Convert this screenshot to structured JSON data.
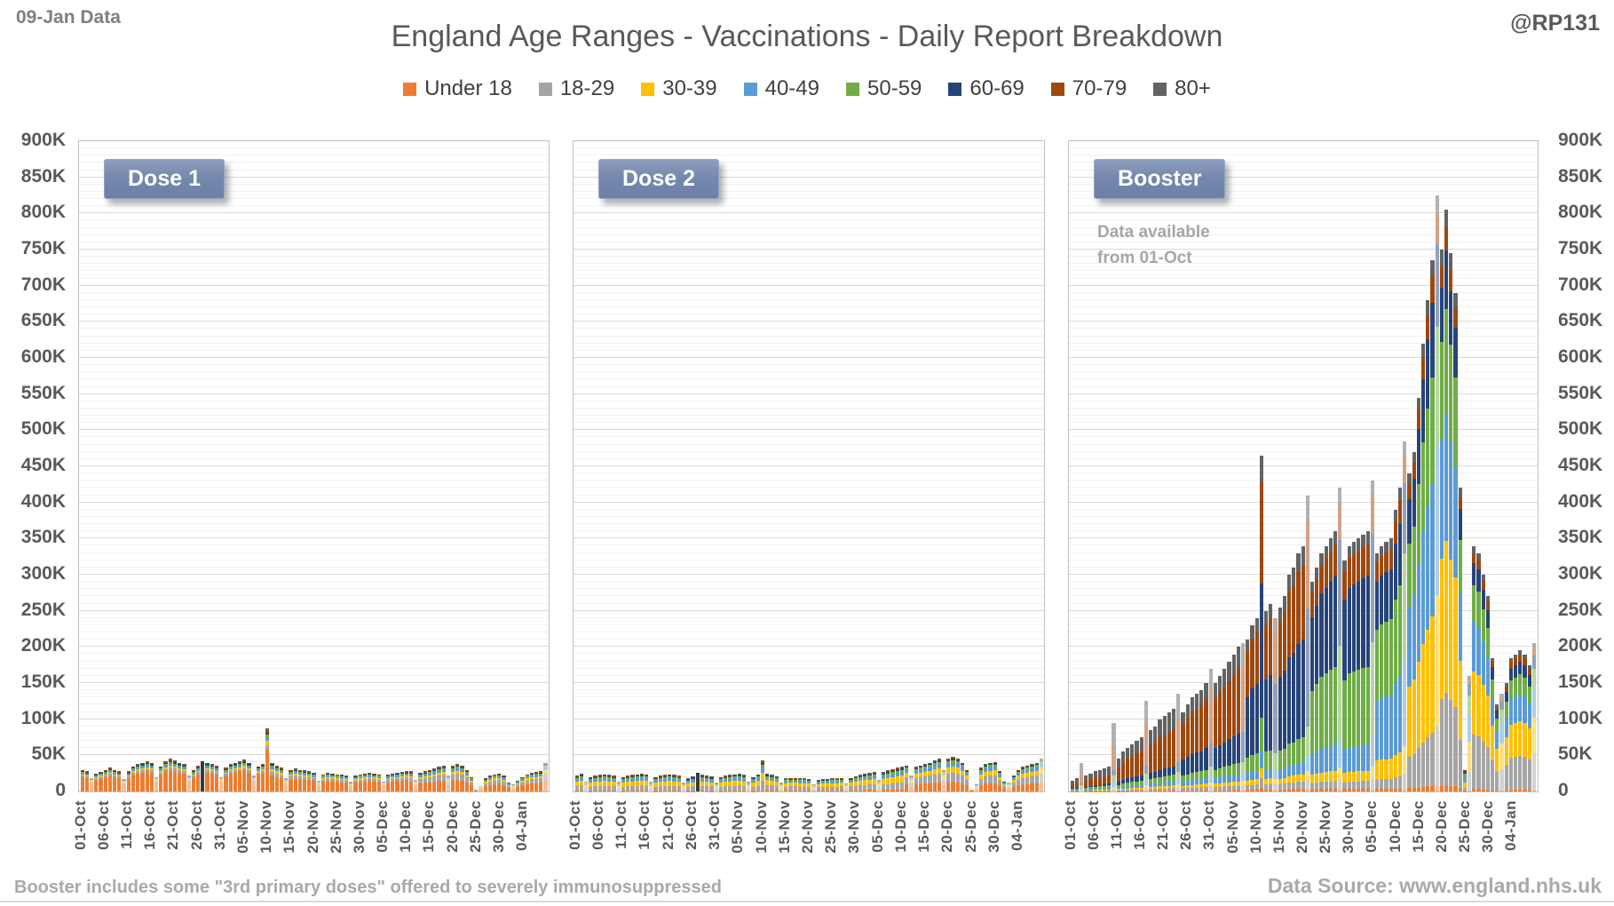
{
  "header": {
    "data_label": "09-Jan Data",
    "title": "England Age Ranges - Vaccinations - Daily Report Breakdown",
    "handle": "@RP131"
  },
  "footer": {
    "left_note": "Booster includes some \"3rd primary doses\" offered to severely immunosuppressed",
    "right_source": "Data Source: www.england.nhs.uk"
  },
  "chart_data": {
    "type": "bar",
    "subtype": "stacked-daily",
    "units": "doses per day (thousands)",
    "age_groups": [
      {
        "label": "Under 18",
        "color": "#ED7D31"
      },
      {
        "label": "18-29",
        "color": "#A5A5A5"
      },
      {
        "label": "30-39",
        "color": "#FFC000"
      },
      {
        "label": "40-49",
        "color": "#5B9BD5"
      },
      {
        "label": "50-59",
        "color": "#70AD47"
      },
      {
        "label": "60-69",
        "color": "#264478"
      },
      {
        "label": "70-79",
        "color": "#9E480E"
      },
      {
        "label": "80+",
        "color": "#636363"
      }
    ],
    "solid_dark_color": "#3a3a3a",
    "y_axis": {
      "max": 900,
      "major_step": 50,
      "minor_step": 10,
      "labels": [
        "0",
        "50K",
        "100K",
        "150K",
        "200K",
        "250K",
        "300K",
        "350K",
        "400K",
        "450K",
        "500K",
        "550K",
        "600K",
        "650K",
        "700K",
        "750K",
        "800K",
        "850K",
        "900K"
      ]
    },
    "dates": [
      "01-Oct",
      "02-Oct",
      "03-Oct",
      "04-Oct",
      "05-Oct",
      "06-Oct",
      "07-Oct",
      "08-Oct",
      "09-Oct",
      "10-Oct",
      "11-Oct",
      "12-Oct",
      "13-Oct",
      "14-Oct",
      "15-Oct",
      "16-Oct",
      "17-Oct",
      "18-Oct",
      "19-Oct",
      "20-Oct",
      "21-Oct",
      "22-Oct",
      "23-Oct",
      "24-Oct",
      "25-Oct",
      "26-Oct",
      "27-Oct",
      "28-Oct",
      "29-Oct",
      "30-Oct",
      "31-Oct",
      "01-Nov",
      "02-Nov",
      "03-Nov",
      "04-Nov",
      "05-Nov",
      "06-Nov",
      "07-Nov",
      "08-Nov",
      "09-Nov",
      "10-Nov",
      "11-Nov",
      "12-Nov",
      "13-Nov",
      "14-Nov",
      "15-Nov",
      "16-Nov",
      "17-Nov",
      "18-Nov",
      "19-Nov",
      "20-Nov",
      "21-Nov",
      "22-Nov",
      "23-Nov",
      "24-Nov",
      "25-Nov",
      "26-Nov",
      "27-Nov",
      "28-Nov",
      "29-Nov",
      "30-Nov",
      "01-Dec",
      "02-Dec",
      "03-Dec",
      "04-Dec",
      "05-Dec",
      "06-Dec",
      "07-Dec",
      "08-Dec",
      "09-Dec",
      "10-Dec",
      "11-Dec",
      "12-Dec",
      "13-Dec",
      "14-Dec",
      "15-Dec",
      "16-Dec",
      "17-Dec",
      "18-Dec",
      "19-Dec",
      "20-Dec",
      "21-Dec",
      "22-Dec",
      "23-Dec",
      "24-Dec",
      "25-Dec",
      "26-Dec",
      "27-Dec",
      "28-Dec",
      "29-Dec",
      "30-Dec",
      "31-Dec",
      "01-Jan",
      "02-Jan",
      "03-Jan",
      "04-Jan",
      "05-Jan",
      "06-Jan",
      "07-Jan",
      "08-Jan",
      "09-Jan"
    ],
    "x_tick_indices": [
      0,
      5,
      10,
      15,
      20,
      25,
      30,
      35,
      40,
      45,
      50,
      55,
      60,
      65,
      70,
      75,
      80,
      85,
      90,
      95
    ],
    "sunday_pale_days": [
      2,
      9,
      16,
      23,
      30,
      37,
      44,
      51,
      58,
      65,
      72,
      79,
      86,
      93,
      100
    ],
    "panels": [
      {
        "id": "dose1",
        "badge": "Dose 1",
        "note_line1": "",
        "note_line2": "",
        "totals_k": [
          30,
          28,
          18,
          25,
          27,
          30,
          33,
          30,
          28,
          17,
          28,
          35,
          38,
          40,
          42,
          40,
          20,
          35,
          42,
          45,
          43,
          40,
          38,
          22,
          30,
          36,
          42,
          40,
          38,
          36,
          20,
          33,
          38,
          40,
          42,
          44,
          40,
          22,
          35,
          38,
          87,
          40,
          36,
          33,
          18,
          30,
          32,
          30,
          29,
          28,
          26,
          15,
          24,
          26,
          25,
          24,
          23,
          22,
          13,
          22,
          24,
          25,
          26,
          25,
          24,
          14,
          23,
          25,
          26,
          27,
          28,
          28,
          16,
          26,
          28,
          30,
          32,
          34,
          36,
          22,
          36,
          38,
          36,
          30,
          20,
          3,
          8,
          18,
          22,
          24,
          25,
          22,
          12,
          10,
          15,
          20,
          24,
          26,
          27,
          28,
          40
        ],
        "mix_phases": [
          {
            "from": 0,
            "to": 40,
            "pct": [
              66,
              8,
              6,
              5,
              5,
              4,
              3,
              3
            ]
          },
          {
            "from": 41,
            "to": 70,
            "pct": [
              55,
              14,
              8,
              7,
              6,
              4,
              3,
              3
            ]
          },
          {
            "from": 71,
            "to": 100,
            "pct": [
              42,
              22,
              11,
              8,
              7,
              4,
              3,
              3
            ]
          }
        ],
        "solid_dark_days": [
          26
        ]
      },
      {
        "id": "dose2",
        "badge": "Dose 2",
        "note_line1": "",
        "note_line2": "",
        "totals_k": [
          22,
          25,
          14,
          20,
          22,
          23,
          24,
          23,
          22,
          13,
          20,
          22,
          23,
          24,
          25,
          24,
          13,
          20,
          22,
          23,
          24,
          23,
          22,
          12,
          18,
          21,
          26,
          23,
          22,
          21,
          12,
          20,
          22,
          23,
          24,
          25,
          23,
          13,
          20,
          24,
          43,
          25,
          23,
          21,
          12,
          18,
          19,
          19,
          18,
          18,
          17,
          10,
          16,
          17,
          17,
          18,
          18,
          19,
          11,
          19,
          21,
          23,
          25,
          26,
          27,
          16,
          27,
          29,
          31,
          33,
          35,
          36,
          22,
          34,
          36,
          38,
          40,
          43,
          45,
          30,
          46,
          48,
          46,
          40,
          30,
          3,
          10,
          33,
          38,
          40,
          41,
          28,
          14,
          12,
          22,
          30,
          34,
          36,
          38,
          40,
          46
        ],
        "mix_phases": [
          {
            "from": 0,
            "to": 40,
            "pct": [
              3,
              30,
              28,
              14,
              10,
              7,
              4,
              4
            ]
          },
          {
            "from": 41,
            "to": 70,
            "pct": [
              8,
              28,
              26,
              14,
              10,
              6,
              4,
              4
            ]
          },
          {
            "from": 71,
            "to": 100,
            "pct": [
              28,
              26,
              18,
              11,
              8,
              4,
              3,
              2
            ]
          }
        ],
        "solid_dark_days": [
          26
        ]
      },
      {
        "id": "booster",
        "badge": "Booster",
        "note_line1": "Data available",
        "note_line2": "from 01-Oct",
        "totals_k": [
          15,
          18,
          40,
          22,
          25,
          28,
          30,
          32,
          35,
          95,
          45,
          55,
          60,
          65,
          70,
          75,
          125,
          85,
          90,
          100,
          105,
          110,
          115,
          135,
          110,
          120,
          130,
          135,
          140,
          150,
          170,
          150,
          160,
          170,
          180,
          190,
          200,
          205,
          210,
          230,
          240,
          465,
          250,
          260,
          240,
          255,
          270,
          300,
          310,
          330,
          340,
          410,
          290,
          310,
          330,
          340,
          350,
          360,
          420,
          320,
          340,
          345,
          350,
          355,
          360,
          430,
          330,
          340,
          345,
          350,
          390,
          420,
          485,
          440,
          470,
          545,
          620,
          680,
          735,
          825,
          750,
          805,
          745,
          690,
          420,
          30,
          160,
          340,
          330,
          300,
          270,
          185,
          120,
          135,
          150,
          185,
          190,
          195,
          190,
          175,
          205
        ],
        "mix_phases": [
          {
            "from": 0,
            "to": 9,
            "pct": [
              1,
              3,
              3,
              6,
              10,
              8,
              35,
              34
            ]
          },
          {
            "from": 10,
            "to": 23,
            "pct": [
              1,
              3,
              3,
              5,
              8,
              10,
              45,
              25
            ]
          },
          {
            "from": 24,
            "to": 37,
            "pct": [
              1,
              3,
              3,
              5,
              8,
              20,
              45,
              15
            ]
          },
          {
            "from": 38,
            "to": 51,
            "pct": [
              1,
              3,
              3,
              5,
              10,
              40,
              30,
              8
            ]
          },
          {
            "from": 52,
            "to": 65,
            "pct": [
              1,
              3,
              4,
              10,
              30,
              35,
              12,
              5
            ]
          },
          {
            "from": 66,
            "to": 72,
            "pct": [
              1,
              4,
              8,
              25,
              30,
              20,
              8,
              4
            ]
          },
          {
            "from": 73,
            "to": 79,
            "pct": [
              1,
              10,
              22,
              25,
              20,
              14,
              5,
              3
            ]
          },
          {
            "from": 80,
            "to": 86,
            "pct": [
              1,
              16,
              26,
              22,
              18,
              10,
              4,
              3
            ]
          },
          {
            "from": 87,
            "to": 93,
            "pct": [
              1,
              22,
              26,
              20,
              15,
              9,
              4,
              3
            ]
          },
          {
            "from": 94,
            "to": 100,
            "pct": [
              1,
              24,
              25,
              19,
              14,
              9,
              5,
              3
            ]
          }
        ],
        "solid_dark_days": []
      }
    ]
  }
}
